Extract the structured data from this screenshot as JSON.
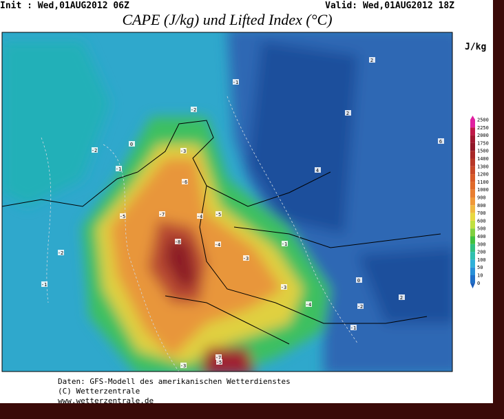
{
  "header": {
    "init": "Init : Wed,01AUG2012 06Z",
    "valid": "Valid: Wed,01AUG2012 18Z",
    "title": "CAPE (J/kg) und Lifted Index (°C)"
  },
  "legend": {
    "unit": "J/kg",
    "levels": [
      "2500",
      "2250",
      "2000",
      "1750",
      "1500",
      "1400",
      "1300",
      "1200",
      "1100",
      "1000",
      "900",
      "800",
      "700",
      "600",
      "500",
      "400",
      "300",
      "200",
      "100",
      "50",
      "10",
      "0"
    ]
  },
  "map": {
    "contour_labels": [
      "-5",
      "-7",
      "-8",
      "-6",
      "-5",
      "-4",
      "-3",
      "-4",
      "-3",
      "-2",
      "-1",
      "0",
      "-1",
      "-2",
      "-1",
      "-2",
      "-1",
      "-3",
      "-4",
      "-5",
      "-2",
      "0",
      "4",
      "2",
      "-1",
      "-3",
      "-7",
      "2",
      "6",
      "2"
    ]
  },
  "footer": {
    "lines": [
      "Daten: GFS-Modell des amerikanischen Wetterdienstes",
      "(C) Wetterzentrale",
      "www.wetterzentrale.de"
    ]
  }
}
